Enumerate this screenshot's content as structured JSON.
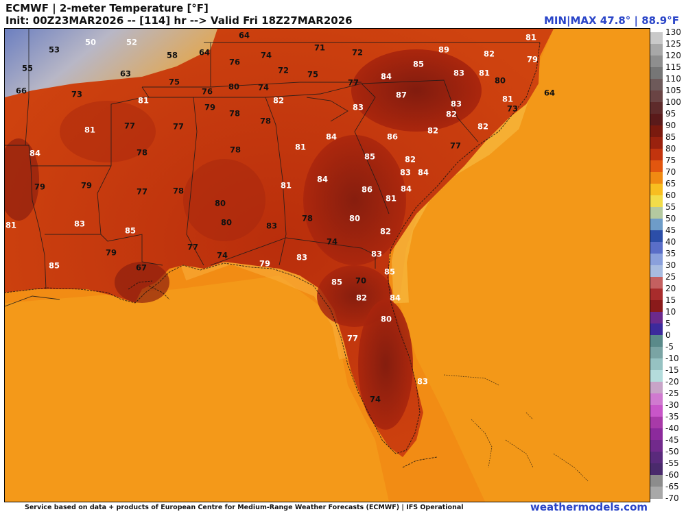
{
  "header": {
    "title": "ECMWF | 2-meter Temperature [°F]",
    "init": "Init: 00Z23MAR2026 -- [114] hr --> Valid Fri 18Z27MAR2026",
    "minmax": "MIN|MAX 47.8° | 88.9°F"
  },
  "footer": {
    "credit": "Service based on data + products of European Centre for Medium-Range Weather Forecasts (ECMWF) | IFS Operational",
    "brand": "weathermodels.com"
  },
  "colorbar": {
    "labels": [
      "130",
      "125",
      "120",
      "115",
      "110",
      "105",
      "100",
      "95",
      "90",
      "85",
      "80",
      "75",
      "70",
      "65",
      "60",
      "55",
      "50",
      "45",
      "40",
      "35",
      "30",
      "25",
      "20",
      "15",
      "10",
      "5",
      "0",
      "-5",
      "-10",
      "-15",
      "-20",
      "-25",
      "-30",
      "-35",
      "-40",
      "-45",
      "-50",
      "-55",
      "-60",
      "-65",
      "-70"
    ],
    "colors": [
      "#c9c9c9",
      "#a8a8a8",
      "#8e8e8e",
      "#767676",
      "#6e5a5a",
      "#6a4444",
      "#5e2b2b",
      "#5a1a1a",
      "#7a1a0e",
      "#9a220e",
      "#c2340e",
      "#e2560f",
      "#f08a12",
      "#f8be20",
      "#f2dd4a",
      "#b4c9a0",
      "#6e9cc8",
      "#2c4ea8",
      "#5a6ec8",
      "#8aa0dc",
      "#a8bce0",
      "#c46060",
      "#a82c2c",
      "#8a1a1a",
      "#6c2a8c",
      "#3c2a9c",
      "#5a8a8a",
      "#7aa4a4",
      "#96c2c2",
      "#b4dcdc",
      "#c8a4c8",
      "#d07ad0",
      "#c856c8",
      "#a83aa8",
      "#8c2a9c",
      "#722a8c",
      "#5a2a7c",
      "#4a2a6c",
      "#8c8c8c",
      "#a8a8a8",
      "#c8c8c8"
    ]
  },
  "map": {
    "temperature_labels": [
      {
        "v": "53",
        "t": "dark"
      },
      {
        "v": "50",
        "t": "light"
      },
      {
        "v": "52",
        "t": "light"
      },
      {
        "v": "64",
        "t": "dark"
      },
      {
        "v": "55",
        "t": "dark"
      },
      {
        "v": "58",
        "t": "dark"
      },
      {
        "v": "64",
        "t": "dark"
      },
      {
        "v": "71",
        "t": "dark"
      },
      {
        "v": "72",
        "t": "dark"
      },
      {
        "v": "89",
        "t": "light"
      },
      {
        "v": "82",
        "t": "light"
      },
      {
        "v": "81",
        "t": "light"
      },
      {
        "v": "79",
        "t": "light"
      },
      {
        "v": "66",
        "t": "dark"
      },
      {
        "v": "63",
        "t": "dark"
      },
      {
        "v": "76",
        "t": "dark"
      },
      {
        "v": "74",
        "t": "dark"
      },
      {
        "v": "72",
        "t": "dark"
      },
      {
        "v": "75",
        "t": "dark"
      },
      {
        "v": "77",
        "t": "dark"
      },
      {
        "v": "85",
        "t": "light"
      },
      {
        "v": "84",
        "t": "light"
      },
      {
        "v": "83",
        "t": "light"
      },
      {
        "v": "81",
        "t": "light"
      },
      {
        "v": "80",
        "t": "dark"
      },
      {
        "v": "73",
        "t": "dark"
      },
      {
        "v": "75",
        "t": "dark"
      },
      {
        "v": "80",
        "t": "dark"
      },
      {
        "v": "74",
        "t": "dark"
      },
      {
        "v": "76",
        "t": "dark"
      },
      {
        "v": "87",
        "t": "light"
      },
      {
        "v": "81",
        "t": "light"
      },
      {
        "v": "64",
        "t": "dark"
      },
      {
        "v": "81",
        "t": "light"
      },
      {
        "v": "82",
        "t": "light"
      },
      {
        "v": "79",
        "t": "dark"
      },
      {
        "v": "78",
        "t": "dark"
      },
      {
        "v": "83",
        "t": "light"
      },
      {
        "v": "83",
        "t": "light"
      },
      {
        "v": "73",
        "t": "dark"
      },
      {
        "v": "82",
        "t": "light"
      },
      {
        "v": "78",
        "t": "dark"
      },
      {
        "v": "77",
        "t": "dark"
      },
      {
        "v": "77",
        "t": "dark"
      },
      {
        "v": "81",
        "t": "light"
      },
      {
        "v": "84",
        "t": "light"
      },
      {
        "v": "86",
        "t": "light"
      },
      {
        "v": "82",
        "t": "light"
      },
      {
        "v": "82",
        "t": "light"
      },
      {
        "v": "84",
        "t": "light"
      },
      {
        "v": "78",
        "t": "dark"
      },
      {
        "v": "78",
        "t": "dark"
      },
      {
        "v": "81",
        "t": "light"
      },
      {
        "v": "85",
        "t": "light"
      },
      {
        "v": "77",
        "t": "dark"
      },
      {
        "v": "82",
        "t": "light"
      },
      {
        "v": "83",
        "t": "light"
      },
      {
        "v": "84",
        "t": "light"
      },
      {
        "v": "79",
        "t": "dark"
      },
      {
        "v": "79",
        "t": "dark"
      },
      {
        "v": "77",
        "t": "dark"
      },
      {
        "v": "78",
        "t": "dark"
      },
      {
        "v": "84",
        "t": "light"
      },
      {
        "v": "86",
        "t": "light"
      },
      {
        "v": "84",
        "t": "light"
      },
      {
        "v": "81",
        "t": "light"
      },
      {
        "v": "81",
        "t": "light"
      },
      {
        "v": "80",
        "t": "dark"
      },
      {
        "v": "80",
        "t": "dark"
      },
      {
        "v": "81",
        "t": "light"
      },
      {
        "v": "83",
        "t": "light"
      },
      {
        "v": "83",
        "t": "dark"
      },
      {
        "v": "78",
        "t": "dark"
      },
      {
        "v": "80",
        "t": "light"
      },
      {
        "v": "82",
        "t": "light"
      },
      {
        "v": "85",
        "t": "light"
      },
      {
        "v": "77",
        "t": "dark"
      },
      {
        "v": "74",
        "t": "dark"
      },
      {
        "v": "74",
        "t": "dark"
      },
      {
        "v": "79",
        "t": "dark"
      },
      {
        "v": "83",
        "t": "light"
      },
      {
        "v": "83",
        "t": "light"
      },
      {
        "v": "79",
        "t": "light"
      },
      {
        "v": "67",
        "t": "dark"
      },
      {
        "v": "85",
        "t": "light"
      },
      {
        "v": "85",
        "t": "light"
      },
      {
        "v": "85",
        "t": "light"
      },
      {
        "v": "70",
        "t": "dark"
      },
      {
        "v": "82",
        "t": "light"
      },
      {
        "v": "84",
        "t": "light"
      },
      {
        "v": "80",
        "t": "light"
      },
      {
        "v": "77",
        "t": "light"
      },
      {
        "v": "83",
        "t": "light"
      },
      {
        "v": "74",
        "t": "dark"
      }
    ]
  }
}
